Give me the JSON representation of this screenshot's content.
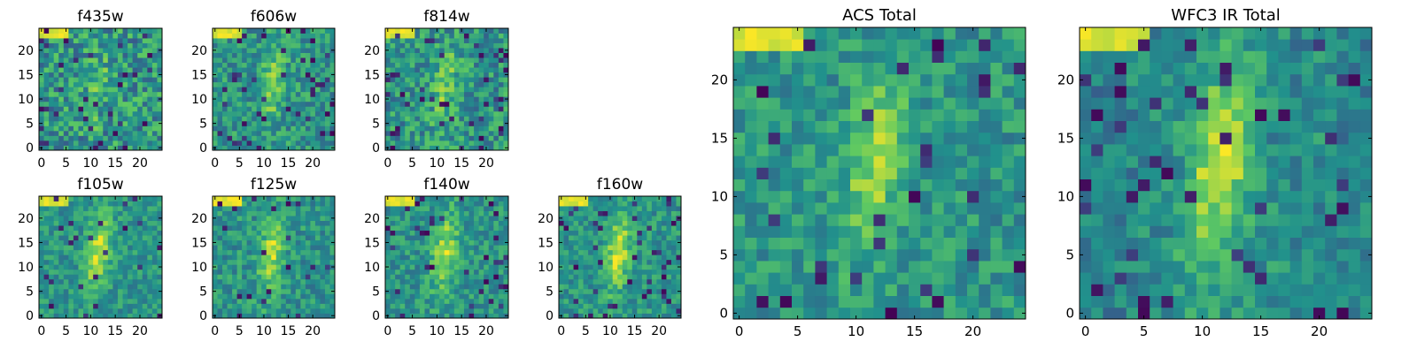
{
  "palette": [
    "#440154",
    "#3b528b",
    "#21918c",
    "#5ec962",
    "#fde725"
  ],
  "chart_data": [
    {
      "type": "heatmap",
      "title": "f435w",
      "grid": "off",
      "size": 25,
      "xlim": [
        -0.5,
        24.5
      ],
      "ylim": [
        -0.5,
        24.5
      ],
      "xticks": [
        0,
        5,
        10,
        15,
        20
      ],
      "yticks": [
        0,
        5,
        10,
        15,
        20
      ],
      "xtick_labels": [
        "0",
        "5",
        "10",
        "15",
        "20"
      ],
      "ytick_labels": [
        "0",
        "5",
        "10",
        "15",
        "20"
      ],
      "colormap": "viridis",
      "pattern": {
        "seed": 11,
        "noise": 0.48,
        "ridge": 0.14,
        "dark": 0.05,
        "corner": 0.35,
        "blocks": false
      }
    },
    {
      "type": "heatmap",
      "title": "f606w",
      "grid": "off",
      "size": 25,
      "xlim": [
        -0.5,
        24.5
      ],
      "ylim": [
        -0.5,
        24.5
      ],
      "xticks": [
        0,
        5,
        10,
        15,
        20
      ],
      "yticks": [
        0,
        5,
        10,
        15,
        20
      ],
      "xtick_labels": [
        "0",
        "5",
        "10",
        "15",
        "20"
      ],
      "ytick_labels": [
        "0",
        "5",
        "10",
        "15",
        "20"
      ],
      "colormap": "viridis",
      "pattern": {
        "seed": 23,
        "noise": 0.36,
        "ridge": 0.28,
        "dark": 0.06,
        "corner": 0.3,
        "blocks": false
      }
    },
    {
      "type": "heatmap",
      "title": "f814w",
      "grid": "off",
      "size": 25,
      "xlim": [
        -0.5,
        24.5
      ],
      "ylim": [
        -0.5,
        24.5
      ],
      "xticks": [
        0,
        5,
        10,
        15,
        20
      ],
      "yticks": [
        0,
        5,
        10,
        15,
        20
      ],
      "xtick_labels": [
        "0",
        "5",
        "10",
        "15",
        "20"
      ],
      "ytick_labels": [
        "0",
        "5",
        "10",
        "15",
        "20"
      ],
      "colormap": "viridis",
      "pattern": {
        "seed": 37,
        "noise": 0.42,
        "ridge": 0.22,
        "dark": 0.06,
        "corner": 0.3,
        "blocks": false
      }
    },
    {
      "type": "heatmap",
      "title": "f105w",
      "grid": "off",
      "size": 25,
      "xlim": [
        -0.5,
        24.5
      ],
      "ylim": [
        -0.5,
        24.5
      ],
      "xticks": [
        0,
        5,
        10,
        15,
        20
      ],
      "yticks": [
        0,
        5,
        10,
        15,
        20
      ],
      "xtick_labels": [
        "0",
        "5",
        "10",
        "15",
        "20"
      ],
      "ytick_labels": [
        "0",
        "5",
        "10",
        "15",
        "20"
      ],
      "colormap": "viridis",
      "pattern": {
        "seed": 41,
        "noise": 0.28,
        "ridge": 0.38,
        "dark": 0.05,
        "corner": 0.3,
        "blocks": false
      }
    },
    {
      "type": "heatmap",
      "title": "f125w",
      "grid": "off",
      "size": 25,
      "xlim": [
        -0.5,
        24.5
      ],
      "ylim": [
        -0.5,
        24.5
      ],
      "xticks": [
        0,
        5,
        10,
        15,
        20
      ],
      "yticks": [
        0,
        5,
        10,
        15,
        20
      ],
      "xtick_labels": [
        "0",
        "5",
        "10",
        "15",
        "20"
      ],
      "ytick_labels": [
        "0",
        "5",
        "10",
        "15",
        "20"
      ],
      "colormap": "viridis",
      "pattern": {
        "seed": 53,
        "noise": 0.32,
        "ridge": 0.34,
        "dark": 0.04,
        "corner": 0.3,
        "blocks": false
      }
    },
    {
      "type": "heatmap",
      "title": "f140w",
      "grid": "off",
      "size": 25,
      "xlim": [
        -0.5,
        24.5
      ],
      "ylim": [
        -0.5,
        24.5
      ],
      "xticks": [
        0,
        5,
        10,
        15,
        20
      ],
      "yticks": [
        0,
        5,
        10,
        15,
        20
      ],
      "xtick_labels": [
        "0",
        "5",
        "10",
        "15",
        "20"
      ],
      "ytick_labels": [
        "0",
        "5",
        "10",
        "15",
        "20"
      ],
      "colormap": "viridis",
      "pattern": {
        "seed": 67,
        "noise": 0.3,
        "ridge": 0.36,
        "dark": 0.05,
        "corner": 0.3,
        "blocks": false
      }
    },
    {
      "type": "heatmap",
      "title": "f160w",
      "grid": "off",
      "size": 25,
      "xlim": [
        -0.5,
        24.5
      ],
      "ylim": [
        -0.5,
        24.5
      ],
      "xticks": [
        0,
        5,
        10,
        15,
        20
      ],
      "yticks": [
        0,
        5,
        10,
        15,
        20
      ],
      "xtick_labels": [
        "0",
        "5",
        "10",
        "15",
        "20"
      ],
      "ytick_labels": [
        "0",
        "5",
        "10",
        "15",
        "20"
      ],
      "colormap": "viridis",
      "pattern": {
        "seed": 79,
        "noise": 0.3,
        "ridge": 0.38,
        "dark": 0.07,
        "corner": 0.3,
        "blocks": false
      }
    },
    {
      "type": "heatmap",
      "title": "ACS Total",
      "grid": "off",
      "size": 25,
      "xlim": [
        -0.5,
        24.5
      ],
      "ylim": [
        -0.5,
        24.5
      ],
      "xticks": [
        0,
        5,
        10,
        15,
        20
      ],
      "yticks": [
        0,
        5,
        10,
        15,
        20
      ],
      "xtick_labels": [
        "0",
        "5",
        "10",
        "15",
        "20"
      ],
      "ytick_labels": [
        "0",
        "5",
        "10",
        "15",
        "20"
      ],
      "colormap": "viridis",
      "pattern": {
        "seed": 97,
        "noise": 0.3,
        "ridge": 0.32,
        "dark": 0.05,
        "corner": 0.38,
        "blocks": false
      }
    },
    {
      "type": "heatmap",
      "title": "WFC3 IR Total",
      "grid": "off",
      "size": 25,
      "xlim": [
        -0.5,
        24.5
      ],
      "ylim": [
        -0.5,
        24.5
      ],
      "xticks": [
        0,
        5,
        10,
        15,
        20
      ],
      "yticks": [
        0,
        5,
        10,
        15,
        20
      ],
      "xtick_labels": [
        "0",
        "5",
        "10",
        "15",
        "20"
      ],
      "ytick_labels": [
        "0",
        "5",
        "10",
        "15",
        "20"
      ],
      "colormap": "viridis",
      "pattern": {
        "seed": 113,
        "noise": 0.22,
        "ridge": 0.42,
        "dark": 0.06,
        "corner": 0.38,
        "blocks": true
      }
    }
  ]
}
